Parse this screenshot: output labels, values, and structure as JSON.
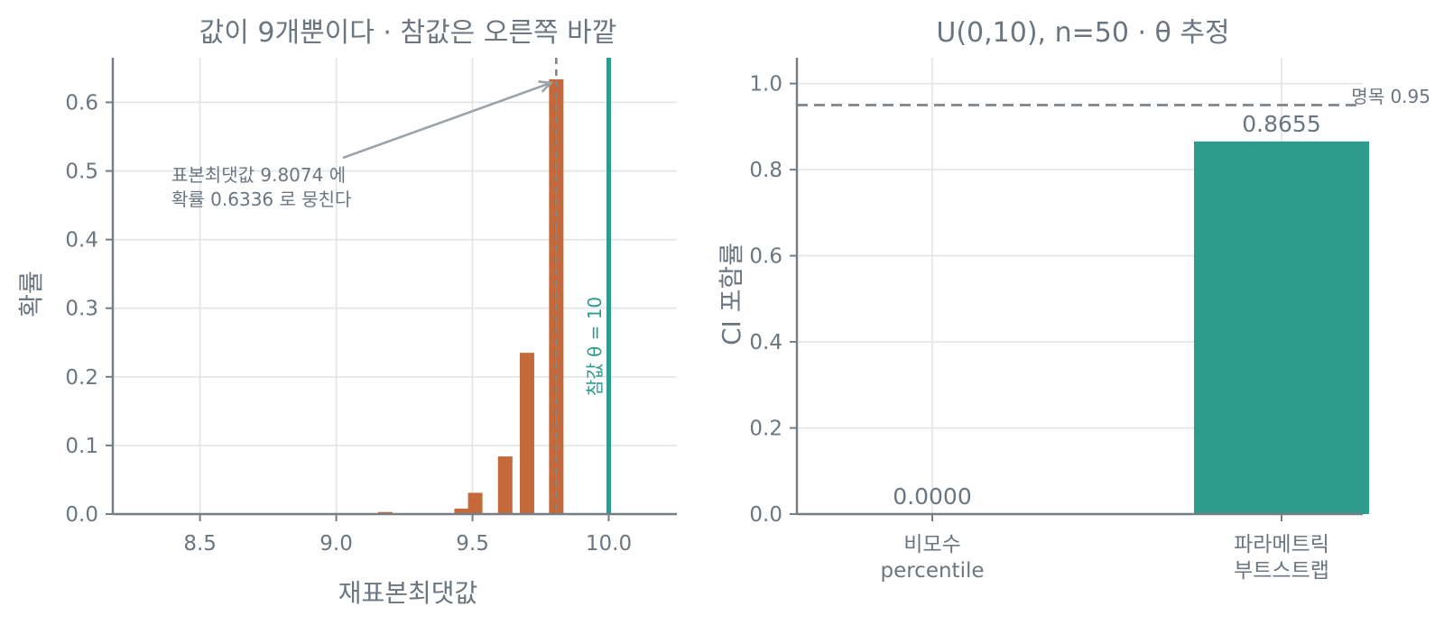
{
  "colors": {
    "bar_hist": "#c4693a",
    "bar_ci": "#2e9b8f",
    "true_value": "#2e9b8f",
    "text": "#6b7680",
    "axis": "#757d85",
    "grid": "#e2e5e8",
    "reference": "#7f858a",
    "arrow": "#9aa3aa"
  },
  "chart_data": [
    {
      "type": "bar",
      "title": "값이 9개뿐이다 · 참값은 오른쪽 바깥",
      "xlabel": "재표본최댓값",
      "ylabel": "확률",
      "xlim": [
        8.18,
        10.25
      ],
      "ylim": [
        0,
        0.665
      ],
      "xticks": [
        "8.5",
        "9.0",
        "9.5",
        "10.0"
      ],
      "yticks": [
        "0.0",
        "0.1",
        "0.2",
        "0.3",
        "0.4",
        "0.5",
        "0.6"
      ],
      "grid": true,
      "x": [
        9.15,
        9.18,
        9.46,
        9.51,
        9.62,
        9.7,
        9.8074
      ],
      "values": [
        0.0005,
        0.003,
        0.008,
        0.031,
        0.084,
        0.235,
        0.6336
      ],
      "sample_max": "9.8074",
      "true_value": "10",
      "true_value_label": "참값 θ = 10",
      "annotation": [
        "표본최댓값 9.8074 에",
        "확률 0.6336 로 뭉친다"
      ]
    },
    {
      "type": "bar",
      "title": "U(0,10), n=50 · θ 추정",
      "ylabel": "CI 포함률",
      "ylim": [
        0,
        1.06
      ],
      "yticks": [
        "0.0",
        "0.2",
        "0.4",
        "0.6",
        "0.8",
        "1.0"
      ],
      "grid": true,
      "categories": [
        [
          "비모수",
          "percentile"
        ],
        [
          "파라메트릭",
          "부트스트랩"
        ]
      ],
      "values": [
        0.0,
        0.8655
      ],
      "data_labels": [
        "0.0000",
        "0.8655"
      ],
      "reference_line": 0.95,
      "reference_label": "명목 0.95"
    }
  ]
}
